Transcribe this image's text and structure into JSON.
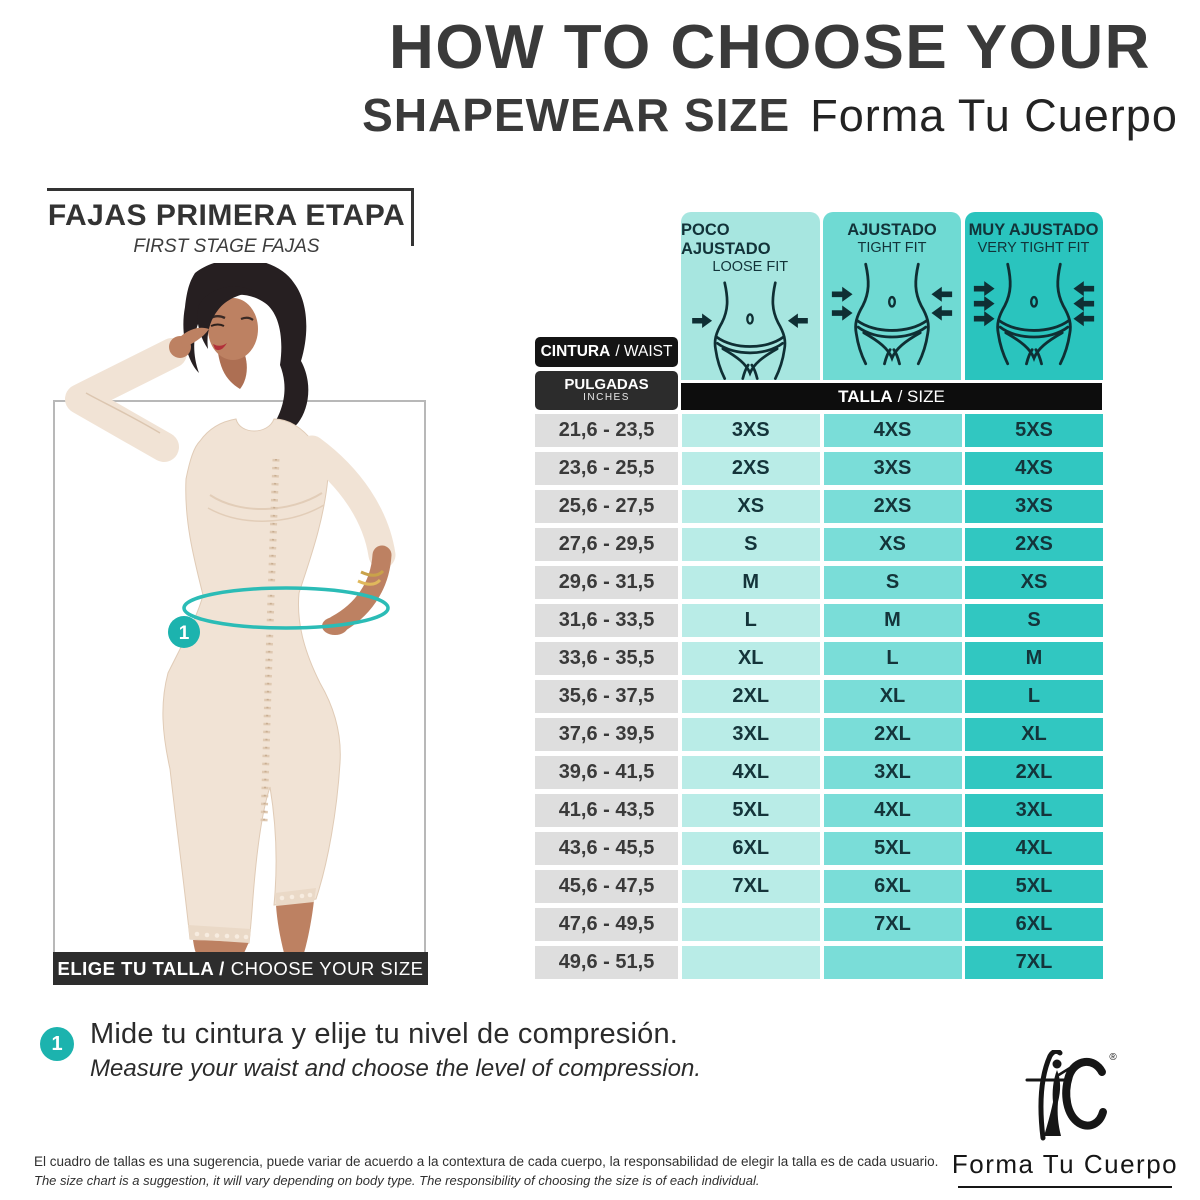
{
  "title": {
    "line1": "HOW TO CHOOSE YOUR",
    "line2": "SHAPEWEAR SIZE",
    "brand": "Forma Tu Cuerpo"
  },
  "left_section": {
    "heading": "FAJAS PRIMERA ETAPA",
    "subheading": "FIRST STAGE FAJAS",
    "caption_bold": "ELIGE TU TALLA /",
    "caption_regular": "CHOOSE YOUR SIZE",
    "marker": "1"
  },
  "table": {
    "waist_header_bold": "CINTURA",
    "waist_header_light": "/ WAIST",
    "units_bold": "PULGADAS",
    "units_light": "INCHES",
    "size_header_bold": "TALLA",
    "size_header_light": "/ SIZE",
    "fit_levels": [
      {
        "label_es": "POCO AJUSTADO",
        "label_en": "LOOSE FIT",
        "arrows": 1,
        "panel_color": "#a7e6e0",
        "cell_color": "#b9ece7"
      },
      {
        "label_es": "AJUSTADO",
        "label_en": "TIGHT FIT",
        "arrows": 2,
        "panel_color": "#6fdad3",
        "cell_color": "#7add d8"
      },
      {
        "label_es": "MUY AJUSTADO",
        "label_en": "VERY TIGHT FIT",
        "arrows": 3,
        "panel_color": "#2ac4be",
        "cell_color": "#31c7c1"
      }
    ],
    "rows": [
      {
        "waist": "21,6 - 23,5",
        "loose": "3XS",
        "tight": "4XS",
        "very_tight": "5XS"
      },
      {
        "waist": "23,6 - 25,5",
        "loose": "2XS",
        "tight": "3XS",
        "very_tight": "4XS"
      },
      {
        "waist": "25,6 - 27,5",
        "loose": "XS",
        "tight": "2XS",
        "very_tight": "3XS"
      },
      {
        "waist": "27,6 - 29,5",
        "loose": "S",
        "tight": "XS",
        "very_tight": "2XS"
      },
      {
        "waist": "29,6 - 31,5",
        "loose": "M",
        "tight": "S",
        "very_tight": "XS"
      },
      {
        "waist": "31,6 - 33,5",
        "loose": "L",
        "tight": "M",
        "very_tight": "S"
      },
      {
        "waist": "33,6 - 35,5",
        "loose": "XL",
        "tight": "L",
        "very_tight": "M"
      },
      {
        "waist": "35,6 - 37,5",
        "loose": "2XL",
        "tight": "XL",
        "very_tight": "L"
      },
      {
        "waist": "37,6 - 39,5",
        "loose": "3XL",
        "tight": "2XL",
        "very_tight": "XL"
      },
      {
        "waist": "39,6 - 41,5",
        "loose": "4XL",
        "tight": "3XL",
        "very_tight": "2XL"
      },
      {
        "waist": "41,6 - 43,5",
        "loose": "5XL",
        "tight": "4XL",
        "very_tight": "3XL"
      },
      {
        "waist": "43,6 - 45,5",
        "loose": "6XL",
        "tight": "5XL",
        "very_tight": "4XL"
      },
      {
        "waist": "45,6 - 47,5",
        "loose": "7XL",
        "tight": "6XL",
        "very_tight": "5XL"
      },
      {
        "waist": "47,6 - 49,5",
        "loose": "",
        "tight": "7XL",
        "very_tight": "6XL"
      },
      {
        "waist": "49,6 - 51,5",
        "loose": "",
        "tight": "",
        "very_tight": "7XL"
      }
    ]
  },
  "instruction": {
    "number": "1",
    "text_es": "Mide tu cintura y elije tu nivel de compresión.",
    "text_en": "Measure your waist and choose the level of compression."
  },
  "disclaimer": {
    "text_es": "El cuadro de tallas es una sugerencia, puede variar de acuerdo a la contextura de cada cuerpo, la responsabilidad de elegir la talla es de cada usuario.",
    "text_en": "The size chart is a suggestion, it will vary depending on body type. The responsibility of choosing the size is of each individual."
  },
  "footer_logo": {
    "brand": "Forma Tu Cuerpo",
    "registered": "®"
  },
  "colors": {
    "accent_teal": "#1cb3ae",
    "measure_line": "#2bbcb6",
    "icon_ink": "#0f2f34"
  }
}
